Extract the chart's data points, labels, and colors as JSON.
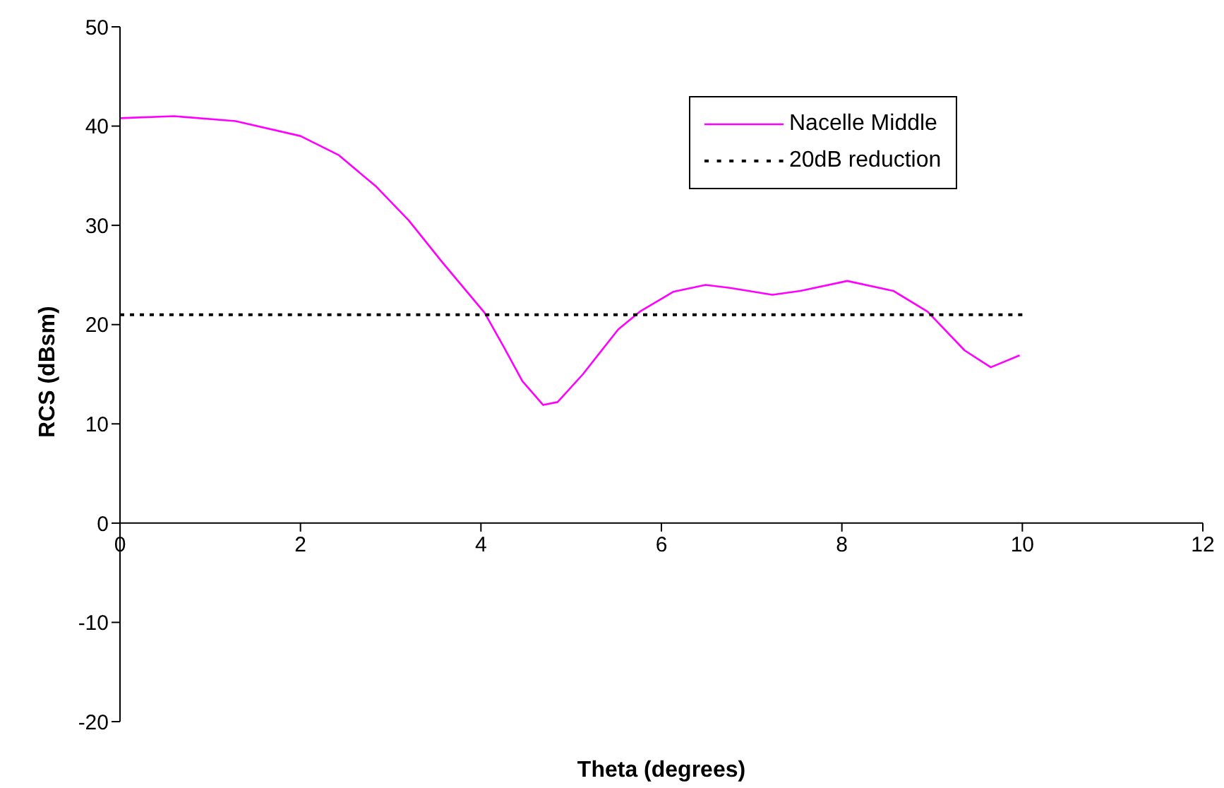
{
  "chart_data": {
    "type": "line",
    "xlabel": "Theta (degrees)",
    "ylabel": "RCS (dBsm)",
    "xlim": [
      0,
      12
    ],
    "xticks": [
      0,
      2,
      4,
      6,
      8,
      10,
      12
    ],
    "ylim": [
      -20,
      50
    ],
    "yticks": [
      -20,
      -10,
      0,
      10,
      20,
      30,
      40,
      50
    ],
    "grid": false,
    "legend": "top right",
    "marker": "none",
    "series": [
      {
        "name": "Nacelle Middle",
        "color": "#ff00ff",
        "line_style": "solid",
        "x": [
          0,
          0.6,
          1.28,
          2.0,
          2.42,
          2.84,
          3.2,
          3.57,
          4.04,
          4.25,
          4.46,
          4.69,
          4.85,
          5.13,
          5.52,
          5.76,
          6.13,
          6.49,
          6.76,
          7.23,
          7.54,
          8.06,
          8.57,
          8.95,
          9.36,
          9.65,
          9.97
        ],
        "values": [
          40.8,
          41.0,
          40.5,
          39.0,
          37.1,
          33.9,
          30.5,
          26.3,
          21.2,
          17.8,
          14.3,
          11.9,
          12.2,
          15.0,
          19.5,
          21.3,
          23.3,
          24.0,
          23.7,
          23.0,
          23.4,
          24.4,
          23.4,
          21.3,
          17.4,
          15.7,
          16.9
        ]
      },
      {
        "name": "20dB reduction",
        "color": "#000000",
        "line_style": "dotted",
        "x": [
          0,
          10
        ],
        "values": [
          21,
          21
        ]
      }
    ]
  }
}
